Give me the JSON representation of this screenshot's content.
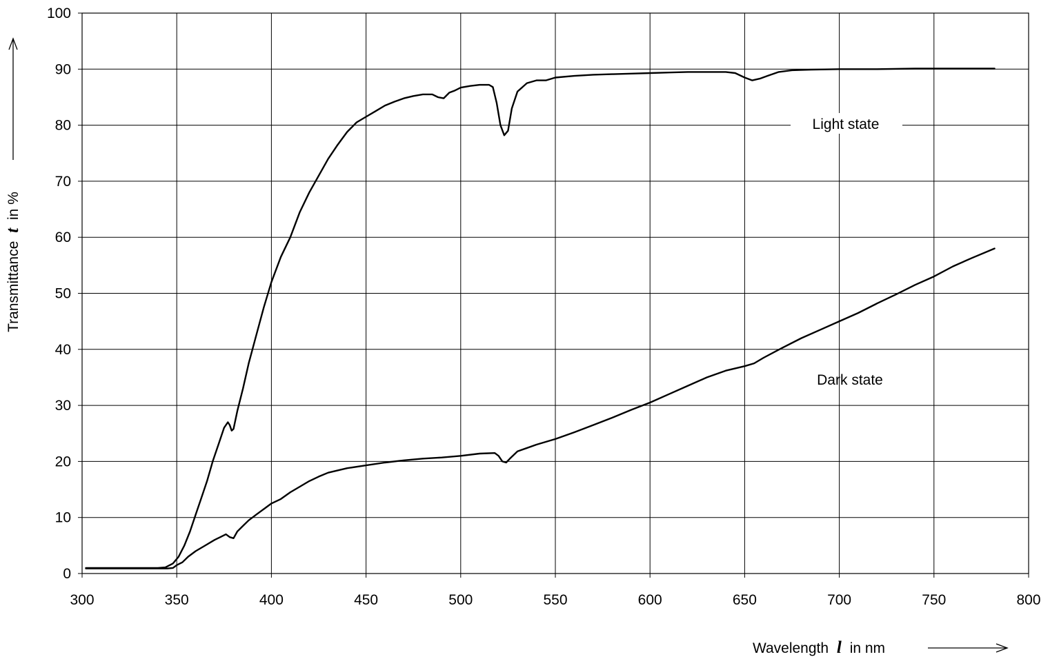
{
  "chart_data": {
    "type": "line",
    "xlabel": {
      "prefix": "Wavelength",
      "symbol": "l",
      "suffix": "in nm"
    },
    "ylabel": {
      "prefix": "Transmittance",
      "symbol": "t",
      "suffix": "in %"
    },
    "xlim": [
      300,
      800
    ],
    "ylim": [
      0,
      100
    ],
    "xticks": [
      "300",
      "350",
      "400",
      "450",
      "500",
      "550",
      "600",
      "650",
      "700",
      "750",
      "800"
    ],
    "yticks": [
      "0",
      "10",
      "20",
      "30",
      "40",
      "50",
      "60",
      "70",
      "80",
      "90",
      "100"
    ],
    "grid": true,
    "series": [
      {
        "name": "Light state",
        "points": [
          [
            302,
            1.0
          ],
          [
            320,
            1.0
          ],
          [
            340,
            1.0
          ],
          [
            344,
            1.1
          ],
          [
            348,
            1.8
          ],
          [
            351,
            3.0
          ],
          [
            354,
            5.0
          ],
          [
            357,
            7.5
          ],
          [
            360,
            10.5
          ],
          [
            363,
            13.5
          ],
          [
            366,
            16.5
          ],
          [
            369,
            20.0
          ],
          [
            372,
            23.0
          ],
          [
            375,
            26.0
          ],
          [
            377,
            27.0
          ],
          [
            378,
            26.5
          ],
          [
            379,
            25.5
          ],
          [
            380,
            25.8
          ],
          [
            382,
            29.0
          ],
          [
            385,
            33.0
          ],
          [
            388,
            37.5
          ],
          [
            392,
            42.5
          ],
          [
            396,
            47.5
          ],
          [
            400,
            52.0
          ],
          [
            405,
            56.5
          ],
          [
            410,
            60.0
          ],
          [
            415,
            64.5
          ],
          [
            420,
            68.0
          ],
          [
            425,
            71.0
          ],
          [
            430,
            74.0
          ],
          [
            435,
            76.5
          ],
          [
            440,
            78.8
          ],
          [
            445,
            80.5
          ],
          [
            450,
            81.5
          ],
          [
            455,
            82.5
          ],
          [
            460,
            83.5
          ],
          [
            465,
            84.2
          ],
          [
            470,
            84.8
          ],
          [
            475,
            85.2
          ],
          [
            480,
            85.5
          ],
          [
            485,
            85.5
          ],
          [
            488,
            85.0
          ],
          [
            491,
            84.8
          ],
          [
            494,
            85.8
          ],
          [
            497,
            86.2
          ],
          [
            500,
            86.7
          ],
          [
            505,
            87.0
          ],
          [
            510,
            87.2
          ],
          [
            515,
            87.2
          ],
          [
            517,
            86.8
          ],
          [
            519,
            84.0
          ],
          [
            521,
            80.0
          ],
          [
            523,
            78.2
          ],
          [
            525,
            79.0
          ],
          [
            527,
            83.0
          ],
          [
            530,
            86.0
          ],
          [
            535,
            87.5
          ],
          [
            540,
            88.0
          ],
          [
            545,
            88.0
          ],
          [
            550,
            88.5
          ],
          [
            560,
            88.8
          ],
          [
            570,
            89.0
          ],
          [
            580,
            89.1
          ],
          [
            590,
            89.2
          ],
          [
            600,
            89.3
          ],
          [
            610,
            89.4
          ],
          [
            620,
            89.5
          ],
          [
            630,
            89.5
          ],
          [
            640,
            89.5
          ],
          [
            645,
            89.3
          ],
          [
            650,
            88.5
          ],
          [
            654,
            88.0
          ],
          [
            658,
            88.3
          ],
          [
            662,
            88.8
          ],
          [
            668,
            89.5
          ],
          [
            675,
            89.8
          ],
          [
            685,
            89.9
          ],
          [
            700,
            90.0
          ],
          [
            720,
            90.0
          ],
          [
            740,
            90.1
          ],
          [
            760,
            90.1
          ],
          [
            782,
            90.1
          ]
        ]
      },
      {
        "name": "Dark state",
        "points": [
          [
            302,
            0.9
          ],
          [
            320,
            0.9
          ],
          [
            340,
            0.9
          ],
          [
            345,
            0.9
          ],
          [
            348,
            1.0
          ],
          [
            350,
            1.5
          ],
          [
            353,
            2.0
          ],
          [
            356,
            3.0
          ],
          [
            360,
            4.0
          ],
          [
            365,
            5.0
          ],
          [
            370,
            6.0
          ],
          [
            373,
            6.5
          ],
          [
            376,
            7.0
          ],
          [
            378,
            6.5
          ],
          [
            380,
            6.3
          ],
          [
            382,
            7.5
          ],
          [
            385,
            8.5
          ],
          [
            388,
            9.5
          ],
          [
            392,
            10.5
          ],
          [
            396,
            11.5
          ],
          [
            400,
            12.5
          ],
          [
            405,
            13.3
          ],
          [
            410,
            14.5
          ],
          [
            415,
            15.5
          ],
          [
            420,
            16.5
          ],
          [
            425,
            17.3
          ],
          [
            430,
            18.0
          ],
          [
            440,
            18.8
          ],
          [
            450,
            19.3
          ],
          [
            460,
            19.8
          ],
          [
            470,
            20.2
          ],
          [
            480,
            20.5
          ],
          [
            490,
            20.7
          ],
          [
            500,
            21.0
          ],
          [
            510,
            21.4
          ],
          [
            518,
            21.5
          ],
          [
            520,
            21.0
          ],
          [
            522,
            20.0
          ],
          [
            524,
            19.8
          ],
          [
            526,
            20.5
          ],
          [
            530,
            21.8
          ],
          [
            540,
            23.0
          ],
          [
            550,
            24.0
          ],
          [
            560,
            25.2
          ],
          [
            570,
            26.5
          ],
          [
            580,
            27.8
          ],
          [
            590,
            29.2
          ],
          [
            600,
            30.5
          ],
          [
            610,
            32.0
          ],
          [
            620,
            33.5
          ],
          [
            630,
            35.0
          ],
          [
            640,
            36.2
          ],
          [
            650,
            37.0
          ],
          [
            655,
            37.5
          ],
          [
            660,
            38.5
          ],
          [
            670,
            40.3
          ],
          [
            680,
            42.0
          ],
          [
            690,
            43.5
          ],
          [
            700,
            45.0
          ],
          [
            710,
            46.5
          ],
          [
            720,
            48.2
          ],
          [
            730,
            49.8
          ],
          [
            740,
            51.5
          ],
          [
            750,
            53.0
          ],
          [
            760,
            54.8
          ],
          [
            770,
            56.3
          ],
          [
            782,
            58.0
          ]
        ]
      }
    ]
  }
}
